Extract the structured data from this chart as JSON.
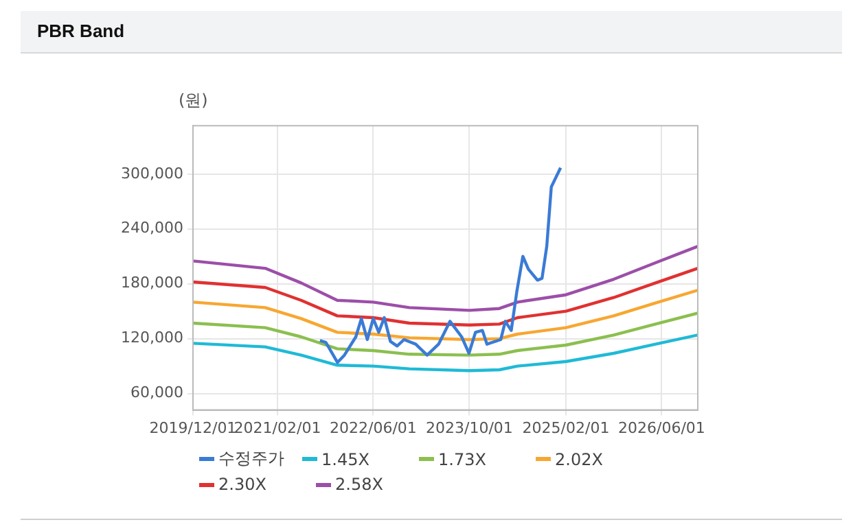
{
  "chart_data": {
    "type": "line",
    "title": "PBR Band",
    "ylabel": "(원)",
    "xlim": [
      "2019-12-01",
      "2026-12-01"
    ],
    "xticks": [
      {
        "value": "2019-12-01",
        "label": "2019/12/01"
      },
      {
        "value": "2021-02-01",
        "label": "2021/02/01"
      },
      {
        "value": "2022-06-01",
        "label": "2022/06/01"
      },
      {
        "value": "2023-10-01",
        "label": "2023/10/01"
      },
      {
        "value": "2025-02-01",
        "label": "2025/02/01"
      },
      {
        "value": "2026-06-01",
        "label": "2026/06/01"
      }
    ],
    "ylim": [
      42000,
      353000
    ],
    "yticks": [
      {
        "value": 60000,
        "label": "60,000"
      },
      {
        "value": 120000,
        "label": "120,000"
      },
      {
        "value": 180000,
        "label": "180,000"
      },
      {
        "value": 240000,
        "label": "240,000"
      },
      {
        "value": 300000,
        "label": "300,000"
      }
    ],
    "grid": true,
    "legend": "bottom",
    "marker": "none",
    "line_style": "solid",
    "series": [
      {
        "name": "수정주가",
        "color": "#3a7bd5",
        "x": [
          "2021-09-04",
          "2021-10-04",
          "2021-12-02",
          "2022-01-06",
          "2022-03-05",
          "2022-04-02",
          "2022-05-02",
          "2022-06-01",
          "2022-06-29",
          "2022-07-27",
          "2022-08-27",
          "2022-09-30",
          "2022-11-04",
          "2023-01-02",
          "2023-03-01",
          "2023-04-28",
          "2023-06-25",
          "2023-08-23",
          "2023-09-29",
          "2023-11-01",
          "2023-12-06",
          "2023-12-29",
          "2024-03-08",
          "2024-03-31",
          "2024-04-30",
          "2024-05-28",
          "2024-06-28",
          "2024-07-26",
          "2024-09-10",
          "2024-10-03",
          "2024-10-27",
          "2024-11-19",
          "2025-01-05"
        ],
        "values": [
          118000,
          116000,
          94000,
          102000,
          122000,
          142000,
          119000,
          142000,
          127000,
          143000,
          117000,
          112000,
          119000,
          114000,
          102000,
          114000,
          139000,
          122000,
          104000,
          127000,
          129000,
          114000,
          119000,
          139000,
          129000,
          171000,
          210000,
          196000,
          184000,
          186000,
          221000,
          286000,
          307000
        ]
      },
      {
        "name": "1.45X",
        "color": "#1fbad6",
        "x": [
          "2019-12-01",
          "2020-12-01",
          "2021-06-01",
          "2021-12-01",
          "2022-06-01",
          "2022-12-01",
          "2023-10-01",
          "2024-03-01",
          "2024-06-01",
          "2025-02-01",
          "2025-10-01",
          "2026-05-01",
          "2026-12-01"
        ],
        "values": [
          115000,
          111000,
          102000,
          91000,
          90000,
          87000,
          85000,
          86000,
          90000,
          95000,
          104000,
          114000,
          124000
        ]
      },
      {
        "name": "1.73X",
        "color": "#8cbf4f",
        "x": [
          "2019-12-01",
          "2020-12-01",
          "2021-06-01",
          "2021-12-01",
          "2022-06-01",
          "2022-12-01",
          "2023-10-01",
          "2024-03-01",
          "2024-06-01",
          "2025-02-01",
          "2025-10-01",
          "2026-05-01",
          "2026-12-01"
        ],
        "values": [
          137000,
          132000,
          122000,
          109000,
          107000,
          103000,
          102000,
          103000,
          107000,
          113000,
          124000,
          136000,
          148000
        ]
      },
      {
        "name": "2.02X",
        "color": "#f7a731",
        "x": [
          "2019-12-01",
          "2020-12-01",
          "2021-06-01",
          "2021-12-01",
          "2022-06-01",
          "2022-12-01",
          "2023-10-01",
          "2024-03-01",
          "2024-06-01",
          "2025-02-01",
          "2025-10-01",
          "2026-05-01",
          "2026-12-01"
        ],
        "values": [
          160000,
          154000,
          142000,
          127000,
          125000,
          121000,
          119000,
          120000,
          125000,
          132000,
          145000,
          159000,
          173000
        ]
      },
      {
        "name": "2.30X",
        "color": "#e03131",
        "x": [
          "2019-12-01",
          "2020-12-01",
          "2021-06-01",
          "2021-12-01",
          "2022-06-01",
          "2022-12-01",
          "2023-10-01",
          "2024-03-01",
          "2024-06-01",
          "2025-02-01",
          "2025-10-01",
          "2026-05-01",
          "2026-12-01"
        ],
        "values": [
          182000,
          176000,
          162000,
          145000,
          143000,
          137000,
          135000,
          136000,
          143000,
          150000,
          165000,
          181000,
          197000
        ]
      },
      {
        "name": "2.58X",
        "color": "#9c4fa8",
        "x": [
          "2019-12-01",
          "2020-12-01",
          "2021-06-01",
          "2021-12-01",
          "2022-06-01",
          "2022-12-01",
          "2023-10-01",
          "2024-03-01",
          "2024-06-01",
          "2025-02-01",
          "2025-10-01",
          "2026-05-01",
          "2026-12-01"
        ],
        "values": [
          205000,
          197000,
          181000,
          162000,
          160000,
          154000,
          151000,
          153000,
          160000,
          168000,
          185000,
          203000,
          221000
        ]
      }
    ]
  }
}
